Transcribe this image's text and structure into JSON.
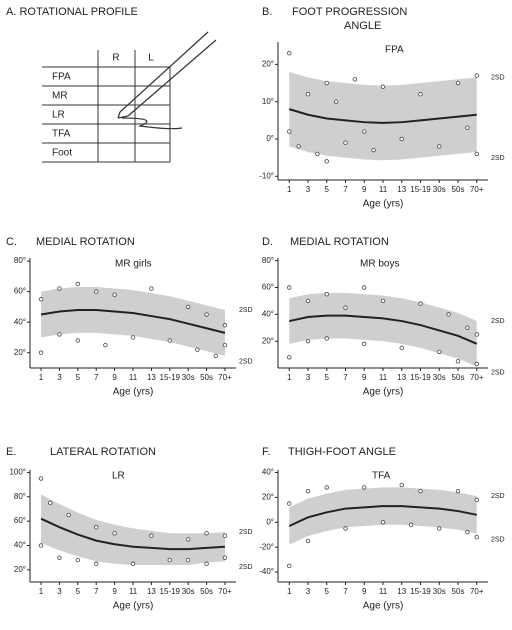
{
  "profile": {
    "title": "A. ROTATIONAL PROFILE",
    "columns": [
      "R",
      "L"
    ],
    "rows": [
      "FPA",
      "MR",
      "LR",
      "TFA",
      "Foot"
    ]
  },
  "chart_data": [
    {
      "type": "band",
      "panel": "B.",
      "title": [
        "FOOT PROGRESSION",
        "ANGLE"
      ],
      "label": "FPA",
      "x_label": "Age (yrs)",
      "band_labels": [
        "2SD",
        "2SD"
      ],
      "xlim": [
        -0.6,
        10.6
      ],
      "xticks": [
        {
          "value": 0,
          "label": "1"
        },
        {
          "value": 1,
          "label": "3"
        },
        {
          "value": 2,
          "label": "5"
        },
        {
          "value": 3,
          "label": "7"
        },
        {
          "value": 4,
          "label": "9"
        },
        {
          "value": 5,
          "label": "11"
        },
        {
          "value": 6,
          "label": "13"
        },
        {
          "value": 7,
          "label": "15-19"
        },
        {
          "value": 8,
          "label": "30s"
        },
        {
          "value": 9,
          "label": "50s"
        },
        {
          "value": 10,
          "label": "70+"
        }
      ],
      "ylim": [
        -11,
        26
      ],
      "yticks": [
        {
          "value": 20,
          "label": "20°"
        },
        {
          "value": 10,
          "label": "10°"
        },
        {
          "value": 0,
          "label": "0°"
        },
        {
          "value": -10,
          "label": "-10°"
        }
      ],
      "mean": [
        8,
        6.5,
        5.5,
        5,
        4.5,
        4.3,
        4.5,
        5,
        5.5,
        6,
        6.5
      ],
      "upper": [
        18,
        16.5,
        15.5,
        15,
        14.5,
        14.3,
        14.5,
        15,
        15.5,
        16,
        16.5
      ],
      "lower": [
        -2,
        -3.5,
        -4.5,
        -5,
        -5.5,
        -5.7,
        -5.5,
        -5,
        -4.5,
        -4,
        -3.5
      ],
      "points": {
        "x": [
          0,
          0,
          0.5,
          1,
          1.5,
          2,
          2,
          2.5,
          3,
          3.5,
          4,
          4.5,
          5,
          6,
          7,
          8,
          9,
          9.5,
          10,
          10
        ],
        "y": [
          2,
          23,
          -2,
          12,
          -4,
          15,
          -6,
          10,
          -1,
          16,
          2,
          -3,
          14,
          0,
          12,
          -2,
          15,
          3,
          -4,
          17
        ]
      }
    },
    {
      "type": "band",
      "panel": "C.",
      "title": [
        "MEDIAL ROTATION"
      ],
      "label": "MR  girls",
      "x_label": "Age (yrs)",
      "band_labels": [
        "2SD",
        "2SD"
      ],
      "xlim": [
        -0.6,
        10.6
      ],
      "xticks": [
        {
          "value": 0,
          "label": "1"
        },
        {
          "value": 1,
          "label": "3"
        },
        {
          "value": 2,
          "label": "5"
        },
        {
          "value": 3,
          "label": "7"
        },
        {
          "value": 4,
          "label": "9"
        },
        {
          "value": 5,
          "label": "11"
        },
        {
          "value": 6,
          "label": "13"
        },
        {
          "value": 7,
          "label": "15-19"
        },
        {
          "value": 8,
          "label": "30s"
        },
        {
          "value": 9,
          "label": "50s"
        },
        {
          "value": 10,
          "label": "70+"
        }
      ],
      "ylim": [
        10,
        82
      ],
      "yticks": [
        {
          "value": 80,
          "label": "80°"
        },
        {
          "value": 60,
          "label": "60°"
        },
        {
          "value": 40,
          "label": "40°"
        },
        {
          "value": 20,
          "label": "20°"
        }
      ],
      "mean": [
        45,
        47,
        48,
        48,
        47,
        46,
        44,
        42,
        39,
        36,
        33
      ],
      "upper": [
        60,
        62,
        63,
        63,
        62,
        61,
        59,
        57,
        54,
        51,
        48
      ],
      "lower": [
        30,
        32,
        33,
        33,
        32,
        31,
        29,
        27,
        24,
        21,
        18
      ],
      "points": {
        "x": [
          0,
          0,
          1,
          1,
          2,
          2,
          3,
          3.5,
          4,
          5,
          6,
          7,
          8,
          8.5,
          9,
          9.5,
          10,
          10
        ],
        "y": [
          20,
          55,
          62,
          32,
          65,
          28,
          60,
          25,
          58,
          30,
          62,
          28,
          50,
          22,
          45,
          18,
          38,
          25
        ]
      }
    },
    {
      "type": "band",
      "panel": "D.",
      "title": [
        "MEDIAL ROTATION"
      ],
      "label": "MR  boys",
      "x_label": "Age (yrs)",
      "band_labels": [
        "2SD",
        "2SD"
      ],
      "xlim": [
        -0.6,
        10.6
      ],
      "xticks": [
        {
          "value": 0,
          "label": "1"
        },
        {
          "value": 1,
          "label": "3"
        },
        {
          "value": 2,
          "label": "5"
        },
        {
          "value": 3,
          "label": "7"
        },
        {
          "value": 4,
          "label": "9"
        },
        {
          "value": 5,
          "label": "11"
        },
        {
          "value": 6,
          "label": "13"
        },
        {
          "value": 7,
          "label": "15-19"
        },
        {
          "value": 8,
          "label": "30s"
        },
        {
          "value": 9,
          "label": "50s"
        },
        {
          "value": 10,
          "label": "70+"
        }
      ],
      "ylim": [
        0,
        82
      ],
      "yticks": [
        {
          "value": 80,
          "label": "80°"
        },
        {
          "value": 60,
          "label": "60°"
        },
        {
          "value": 40,
          "label": "40°"
        },
        {
          "value": 20,
          "label": "20°"
        }
      ],
      "mean": [
        35,
        38,
        39,
        39,
        38,
        37,
        35,
        32,
        28,
        24,
        18
      ],
      "upper": [
        52,
        55,
        56,
        56,
        55,
        54,
        52,
        49,
        45,
        41,
        35
      ],
      "lower": [
        18,
        21,
        22,
        22,
        21,
        20,
        18,
        15,
        11,
        7,
        1
      ],
      "points": {
        "x": [
          0,
          0,
          1,
          1,
          2,
          2,
          3,
          4,
          4,
          5,
          6,
          7,
          8,
          8.5,
          9,
          9.5,
          10,
          10
        ],
        "y": [
          8,
          60,
          50,
          20,
          55,
          22,
          45,
          60,
          18,
          50,
          15,
          48,
          12,
          40,
          5,
          30,
          3,
          25
        ]
      }
    },
    {
      "type": "band",
      "panel": "E.",
      "title": [
        "LATERAL ROTATION"
      ],
      "label": "LR",
      "x_label": "Age (yrs)",
      "band_labels": [
        "2SD",
        "2SD"
      ],
      "xlim": [
        -0.6,
        10.6
      ],
      "xticks": [
        {
          "value": 0,
          "label": "1"
        },
        {
          "value": 1,
          "label": "3"
        },
        {
          "value": 2,
          "label": "5"
        },
        {
          "value": 3,
          "label": "7"
        },
        {
          "value": 4,
          "label": "9"
        },
        {
          "value": 5,
          "label": "11"
        },
        {
          "value": 6,
          "label": "13"
        },
        {
          "value": 7,
          "label": "15-19"
        },
        {
          "value": 8,
          "label": "30s"
        },
        {
          "value": 9,
          "label": "50s"
        },
        {
          "value": 10,
          "label": "70+"
        }
      ],
      "ylim": [
        10,
        102
      ],
      "yticks": [
        {
          "value": 100,
          "label": "100°"
        },
        {
          "value": 80,
          "label": "80°"
        },
        {
          "value": 60,
          "label": "60°"
        },
        {
          "value": 40,
          "label": "40°"
        },
        {
          "value": 20,
          "label": "20°"
        }
      ],
      "mean": [
        62,
        55,
        49,
        44,
        41,
        39,
        38,
        37,
        37,
        38,
        39
      ],
      "upper": [
        82,
        74,
        67,
        61,
        57,
        54,
        52,
        50,
        50,
        50,
        51
      ],
      "lower": [
        42,
        36,
        31,
        27,
        25,
        24,
        24,
        24,
        24,
        26,
        27
      ],
      "points": {
        "x": [
          0,
          0,
          0.5,
          1,
          1.5,
          2,
          3,
          3,
          4,
          5,
          6,
          7,
          8,
          8,
          9,
          9,
          10,
          10
        ],
        "y": [
          95,
          40,
          75,
          30,
          65,
          28,
          55,
          25,
          50,
          25,
          48,
          28,
          45,
          28,
          50,
          25,
          48,
          30
        ]
      }
    },
    {
      "type": "band",
      "panel": "F.",
      "title": [
        "THIGH-FOOT ANGLE"
      ],
      "label": "TFA",
      "x_label": "Age (yrs)",
      "band_labels": [
        "2SD",
        "2SD"
      ],
      "xlim": [
        -0.6,
        10.6
      ],
      "xticks": [
        {
          "value": 0,
          "label": "1"
        },
        {
          "value": 1,
          "label": "3"
        },
        {
          "value": 2,
          "label": "5"
        },
        {
          "value": 3,
          "label": "7"
        },
        {
          "value": 4,
          "label": "9"
        },
        {
          "value": 5,
          "label": "11"
        },
        {
          "value": 6,
          "label": "13"
        },
        {
          "value": 7,
          "label": "15-19"
        },
        {
          "value": 8,
          "label": "30s"
        },
        {
          "value": 9,
          "label": "50s"
        },
        {
          "value": 10,
          "label": "70+"
        }
      ],
      "ylim": [
        -48,
        42
      ],
      "yticks": [
        {
          "value": 40,
          "label": "40°"
        },
        {
          "value": 20,
          "label": "20°"
        },
        {
          "value": 0,
          "label": "0°"
        },
        {
          "value": -20,
          "label": "-20°"
        },
        {
          "value": -40,
          "label": "-40°"
        }
      ],
      "mean": [
        -3,
        4,
        8,
        11,
        12,
        13,
        13,
        12,
        11,
        9,
        6
      ],
      "upper": [
        12,
        19,
        23,
        26,
        27,
        28,
        28,
        27,
        26,
        24,
        21
      ],
      "lower": [
        -18,
        -11,
        -7,
        -4,
        -3,
        -2,
        -2,
        -3,
        -4,
        -6,
        -9
      ],
      "points": {
        "x": [
          0,
          0,
          1,
          1,
          2,
          3,
          4,
          5,
          6,
          6.5,
          7,
          8,
          9,
          9.5,
          10,
          10
        ],
        "y": [
          -35,
          15,
          25,
          -15,
          28,
          -5,
          28,
          0,
          30,
          -2,
          25,
          -5,
          25,
          -8,
          18,
          -12
        ]
      }
    }
  ]
}
